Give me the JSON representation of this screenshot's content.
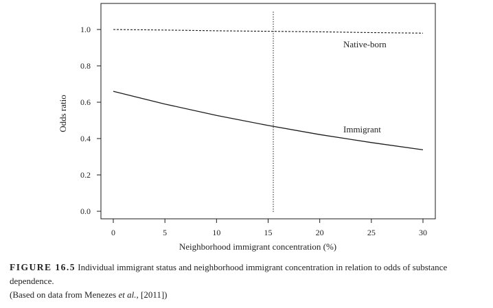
{
  "chart_data": {
    "type": "line",
    "xlabel": "Neighborhood immigrant concentration (%)",
    "ylabel": "Odds ratio",
    "xlim": [
      0,
      30
    ],
    "ylim": [
      0.0,
      1.0
    ],
    "x_ticks": [
      "0",
      "5",
      "10",
      "15",
      "20",
      "25",
      "30"
    ],
    "y_ticks": [
      "0.0",
      "0.2",
      "0.4",
      "0.6",
      "0.8",
      "1.0"
    ],
    "grid": false,
    "reference_line_x": 15.5,
    "series": [
      {
        "name": "Native-born",
        "style": "dashed",
        "x": [
          0,
          5,
          10,
          15,
          20,
          25,
          30
        ],
        "y": [
          1.0,
          0.997,
          0.993,
          0.99,
          0.987,
          0.983,
          0.98
        ]
      },
      {
        "name": "Immigrant",
        "style": "solid",
        "x": [
          0,
          5,
          10,
          15,
          20,
          25,
          30
        ],
        "y": [
          0.66,
          0.59,
          0.527,
          0.472,
          0.422,
          0.378,
          0.338
        ]
      }
    ]
  },
  "caption": {
    "figure_label": "FIGURE 16.5",
    "text": "Individual immigrant status and neighborhood immigrant concentration in relation to odds of substance dependence.",
    "source_prefix": "(Based on data from Menezes ",
    "source_italic": "et al.,",
    "source_suffix": " [2011])"
  },
  "colors": {
    "line": "#1a1a1a",
    "frame": "#1a1a1a"
  }
}
